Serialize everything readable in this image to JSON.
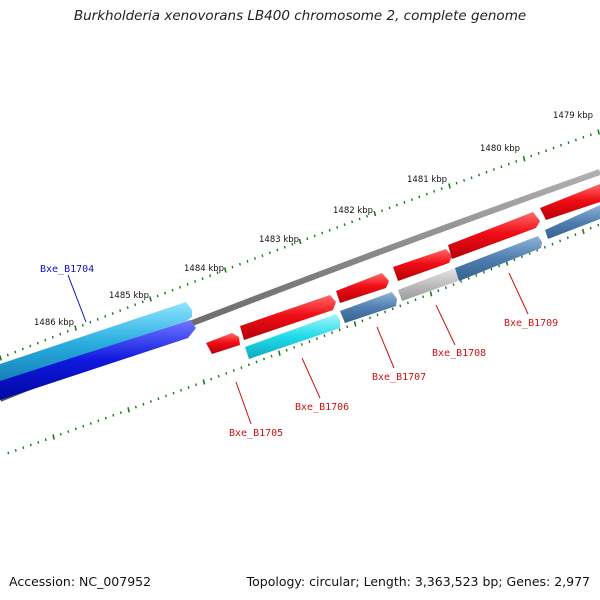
{
  "title": "Burkholderia xenovorans LB400 chromosome 2, complete genome",
  "accession": "Accession: NC_007952",
  "summary": "Topology: circular; Length: 3,363,523 bp; Genes: 2,977",
  "colors": {
    "backbone": "#7d7d7d",
    "ticks": "#1e7a1e",
    "forward_gene": "#e8000e",
    "reverse_gene_cyan": "#1fd6e8",
    "reverse_gene_steel": "#4f7fb0",
    "reverse_gene_gray": "#b8b8b8",
    "outer_cyan": "#2ea8dc",
    "outer_blue": "#0a12d8",
    "label_blue": "#1010c0",
    "label_red": "#d01010"
  },
  "ruler": {
    "labels": [
      "1479 kbp",
      "1480 kbp",
      "1481 kbp",
      "1482 kbp",
      "1483 kbp",
      "1484 kbp",
      "1485 kbp",
      "1486 kbp"
    ]
  },
  "genes": [
    {
      "locus": "Bxe_B1704",
      "strand": "reverse",
      "color": "blue"
    },
    {
      "locus": "Bxe_B1705",
      "strand": "forward",
      "color": "red"
    },
    {
      "locus": "Bxe_B1706",
      "strand": "reverse",
      "color": "red"
    },
    {
      "locus": "Bxe_B1707",
      "strand": "reverse",
      "color": "red"
    },
    {
      "locus": "Bxe_B1708",
      "strand": "reverse",
      "color": "red"
    },
    {
      "locus": "Bxe_B1709",
      "strand": "reverse",
      "color": "red"
    }
  ]
}
